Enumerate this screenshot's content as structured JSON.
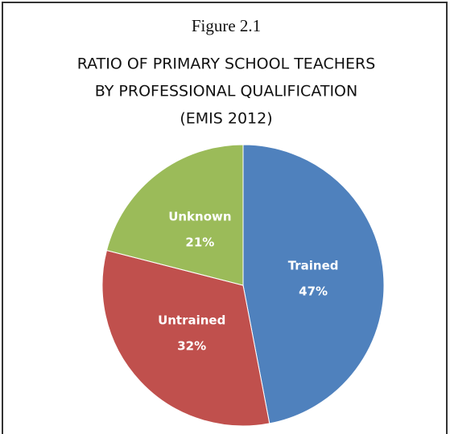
{
  "chart_data": {
    "type": "pie",
    "figure_label": "Figure 2.1",
    "title": [
      "RATIO OF PRIMARY SCHOOL TEACHERS",
      "BY PROFESSIONAL QUALIFICATION",
      "(EMIS 2012)"
    ],
    "categories": [
      "Trained",
      "Untrained",
      "Unknown"
    ],
    "values": [
      47,
      32,
      21
    ],
    "value_labels": [
      "47%",
      "32%",
      "21%"
    ],
    "colors": [
      "#4f81bd",
      "#c0504d",
      "#9bbb59"
    ]
  }
}
